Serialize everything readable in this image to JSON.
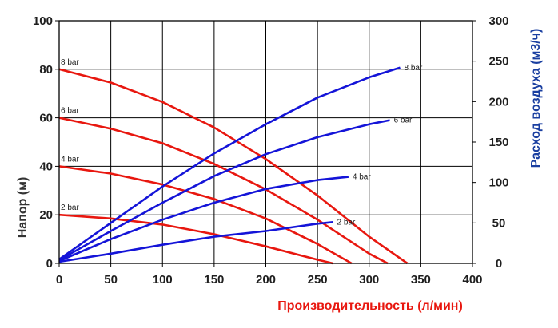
{
  "chart_data": {
    "type": "line",
    "xlabel": "Производительность (л/мин)",
    "ylabel_left": "Напор (м)",
    "ylabel_right": "Расход воздуха (м3/ч)",
    "xlim": [
      0,
      400
    ],
    "ylim_left": [
      0,
      100
    ],
    "ylim_right": [
      0,
      300
    ],
    "x_ticks": [
      "0",
      "50",
      "100",
      "150",
      "200",
      "250",
      "300",
      "350",
      "400"
    ],
    "y_left_ticks": [
      "0",
      "20",
      "40",
      "60",
      "80",
      "100"
    ],
    "y_right_ticks": [
      "0",
      "50",
      "100",
      "150",
      "200",
      "250",
      "300"
    ],
    "grid": true,
    "colors": {
      "head": "#e8170f",
      "air": "#1414d8",
      "xlabel": "#e8170f",
      "ylabel_left": "#333333",
      "ylabel_right": "#1a3fa0"
    },
    "head_series": [
      {
        "name": "8 bar",
        "axis": "left",
        "x": [
          0,
          50,
          100,
          150,
          200,
          250,
          300,
          337
        ],
        "y": [
          80,
          74.5,
          66.5,
          56,
          43,
          28,
          11,
          0
        ]
      },
      {
        "name": "6 bar",
        "axis": "left",
        "x": [
          0,
          50,
          100,
          150,
          200,
          250,
          300,
          318
        ],
        "y": [
          60,
          55.5,
          49.5,
          41,
          30.5,
          18,
          4,
          0
        ]
      },
      {
        "name": "4 bar",
        "axis": "left",
        "x": [
          0,
          50,
          100,
          150,
          200,
          250,
          283
        ],
        "y": [
          40,
          37,
          32.5,
          26.5,
          18.5,
          8,
          0
        ]
      },
      {
        "name": "2 bar",
        "axis": "left",
        "x": [
          0,
          50,
          100,
          150,
          200,
          250,
          265
        ],
        "y": [
          20,
          18.5,
          16,
          12,
          7,
          1.5,
          0
        ]
      }
    ],
    "air_series": [
      {
        "name": "8 bar",
        "axis": "right",
        "x": [
          0,
          50,
          100,
          150,
          200,
          250,
          300,
          330
        ],
        "y": [
          5,
          50,
          95,
          136,
          172,
          205,
          230,
          242
        ]
      },
      {
        "name": "6 bar",
        "axis": "right",
        "x": [
          0,
          50,
          100,
          150,
          200,
          250,
          300,
          320
        ],
        "y": [
          4,
          40,
          75,
          108,
          135,
          156,
          172,
          177
        ]
      },
      {
        "name": "4 bar",
        "axis": "right",
        "x": [
          0,
          50,
          100,
          150,
          200,
          250,
          280
        ],
        "y": [
          3,
          30,
          54,
          75,
          92,
          103,
          107
        ]
      },
      {
        "name": "2 bar",
        "axis": "right",
        "x": [
          0,
          50,
          100,
          150,
          200,
          250,
          265
        ],
        "y": [
          2,
          12,
          23,
          33,
          40,
          49,
          51
        ]
      }
    ]
  }
}
